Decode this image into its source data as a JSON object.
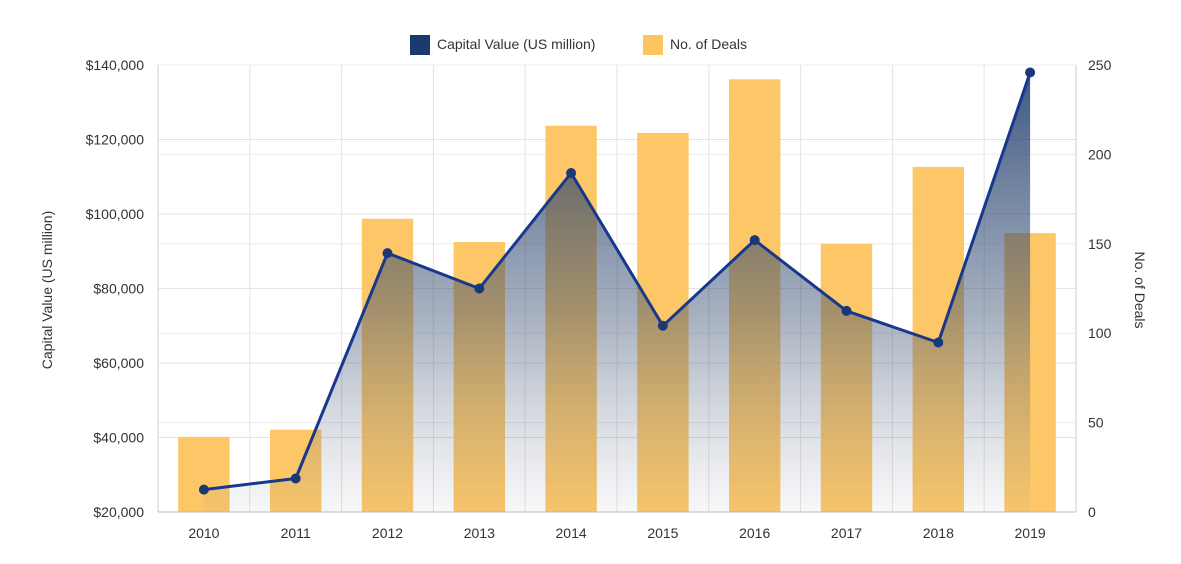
{
  "chart_data": {
    "type": "bar+line",
    "categories": [
      "2010",
      "2011",
      "2012",
      "2013",
      "2014",
      "2015",
      "2016",
      "2017",
      "2018",
      "2019"
    ],
    "series": [
      {
        "name": "Capital Value (US million)",
        "type": "area-line",
        "axis": "left",
        "color": "#1a3a6e",
        "values": [
          26000,
          29000,
          89500,
          80000,
          111000,
          70000,
          93000,
          74000,
          65500,
          138000
        ]
      },
      {
        "name": "No. of Deals",
        "type": "bar",
        "axis": "right",
        "color": "#fdc45f",
        "values": [
          42,
          46,
          164,
          151,
          216,
          212,
          242,
          150,
          193,
          156
        ]
      }
    ],
    "left_axis": {
      "label": "Capital Value (US million)",
      "min": 20000,
      "max": 140000,
      "ticks": [
        20000,
        40000,
        60000,
        80000,
        100000,
        120000,
        140000
      ],
      "tick_labels": [
        "$20,000",
        "$40,000",
        "$60,000",
        "$80,000",
        "$100,000",
        "$120,000",
        "$140,000"
      ]
    },
    "right_axis": {
      "label": "No. of Deals",
      "min": 0,
      "max": 250,
      "ticks": [
        0,
        50,
        100,
        150,
        200,
        250
      ],
      "tick_labels": [
        "0",
        "50",
        "100",
        "150",
        "200",
        "250"
      ]
    },
    "legend_position": "top-center",
    "grid": true
  }
}
